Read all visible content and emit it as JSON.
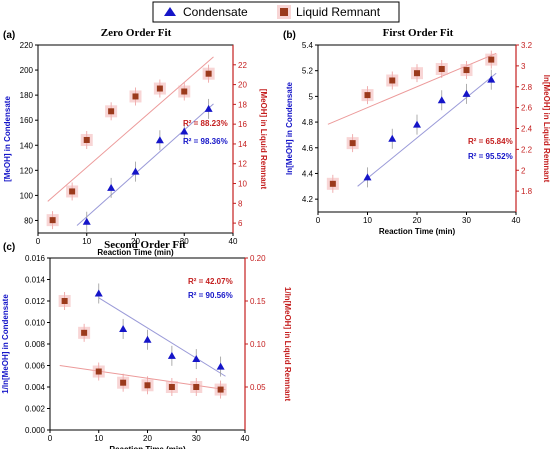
{
  "legend": {
    "items": [
      {
        "label": "Condensate",
        "marker": "triangle",
        "color": "#1515c8"
      },
      {
        "label": "Liquid Remnant",
        "marker": "square",
        "color": "#9b3a1c"
      }
    ]
  },
  "colors": {
    "condensate": "#1515c8",
    "remnant_marker": "#9b3a1c",
    "remnant_halo": "#f3b3b3",
    "remnant_axis": "#c41e1e",
    "fit_condensate": "#9a9ad8",
    "fit_remnant": "#ec9a9a"
  },
  "chart_data": [
    {
      "type": "scatter",
      "panel_label": "(a)",
      "title": "Zero Order Fit",
      "xlabel": "Reaction Time (min)",
      "ylabel_left": "[MeOH] in Condensate",
      "ylabel_right": "[MeOH] in Liquid Remnant",
      "xlim": [
        0,
        40
      ],
      "xticks": [
        0,
        10,
        20,
        30,
        40
      ],
      "ylim_left": [
        70,
        220
      ],
      "yticks_left": [
        80,
        100,
        120,
        140,
        160,
        180,
        200,
        220
      ],
      "ylim_right": [
        5,
        24
      ],
      "yticks_right": [
        6,
        8,
        10,
        12,
        14,
        16,
        18,
        20,
        22
      ],
      "series": [
        {
          "name": "Condensate",
          "axis": "left",
          "x": [
            10,
            15,
            20,
            25,
            30,
            35
          ],
          "y": [
            79,
            106,
            119,
            144,
            151,
            169
          ]
        },
        {
          "name": "Liquid Remnant",
          "axis": "right",
          "x": [
            3,
            7,
            10,
            15,
            20,
            25,
            30,
            35
          ],
          "y": [
            6.3,
            9.2,
            14.4,
            17.3,
            18.8,
            19.6,
            19.3,
            21.1
          ]
        }
      ],
      "fits": [
        {
          "axis": "left",
          "x": [
            8,
            36
          ],
          "y": [
            76,
            173
          ]
        },
        {
          "axis": "right",
          "x": [
            2,
            36
          ],
          "y": [
            8.2,
            22.8
          ]
        }
      ],
      "r2": [
        {
          "text": "R² = 88.23%",
          "series": "Liquid Remnant"
        },
        {
          "text": "R² = 98.36%",
          "series": "Condensate"
        }
      ]
    },
    {
      "type": "scatter",
      "panel_label": "(b)",
      "title": "First Order Fit",
      "xlabel": "Reaction Time (min)",
      "ylabel_left": "ln[MeOH] in Condensate",
      "ylabel_right": "ln[MeOH] in Liquid Remnant",
      "xlim": [
        0,
        40
      ],
      "xticks": [
        0,
        10,
        20,
        30,
        40
      ],
      "ylim_left": [
        4.1,
        5.4
      ],
      "yticks_left": [
        4.2,
        4.4,
        4.6,
        4.8,
        5.0,
        5.2,
        5.4
      ],
      "ylim_right": [
        1.6,
        3.2
      ],
      "yticks_right": [
        1.8,
        2.0,
        2.2,
        2.4,
        2.6,
        2.8,
        3.0,
        3.2
      ],
      "series": [
        {
          "name": "Condensate",
          "axis": "left",
          "x": [
            10,
            15,
            20,
            25,
            30,
            35
          ],
          "y": [
            4.37,
            4.67,
            4.78,
            4.97,
            5.02,
            5.13
          ]
        },
        {
          "name": "Liquid Remnant",
          "axis": "right",
          "x": [
            3,
            7,
            10,
            15,
            20,
            25,
            30,
            35
          ],
          "y": [
            1.87,
            2.26,
            2.72,
            2.86,
            2.93,
            2.97,
            2.96,
            3.06
          ]
        }
      ],
      "fits": [
        {
          "axis": "left",
          "x": [
            8,
            36
          ],
          "y": [
            4.3,
            5.18
          ]
        },
        {
          "axis": "right",
          "x": [
            2,
            36
          ],
          "y": [
            2.44,
            3.12
          ]
        }
      ],
      "r2": [
        {
          "text": "R² = 65.84%",
          "series": "Liquid Remnant"
        },
        {
          "text": "R² = 95.52%",
          "series": "Condensate"
        }
      ]
    },
    {
      "type": "scatter",
      "panel_label": "(c)",
      "title": "Second Order Fit",
      "xlabel": "Reaction Time (min)",
      "ylabel_left": "1/ln[MeOH] in Condensate",
      "ylabel_right": "1/ln[MeOH] in Liquid Remnant",
      "xlim": [
        0,
        40
      ],
      "xticks": [
        0,
        10,
        20,
        30,
        40
      ],
      "ylim_left": [
        0,
        0.016
      ],
      "yticks_left": [
        0.0,
        0.002,
        0.004,
        0.006,
        0.008,
        0.01,
        0.012,
        0.014,
        0.016
      ],
      "ytick_labels_left": [
        "0.000",
        "0.002",
        "0.004",
        "0.006",
        "0.008",
        "0.010",
        "0.012",
        "0.014",
        "0.016"
      ],
      "ylim_right": [
        0,
        0.2
      ],
      "yticks_right": [
        0.05,
        0.1,
        0.15,
        0.2
      ],
      "ytick_labels_right": [
        "0.05",
        "0.10",
        "0.15",
        "0.20"
      ],
      "series": [
        {
          "name": "Condensate",
          "axis": "left",
          "x": [
            10,
            15,
            20,
            25,
            30,
            35
          ],
          "y": [
            0.0127,
            0.0094,
            0.0084,
            0.0069,
            0.0066,
            0.0059
          ]
        },
        {
          "name": "Liquid Remnant",
          "axis": "right",
          "x": [
            3,
            7,
            10,
            15,
            20,
            25,
            30,
            35
          ],
          "y": [
            0.15,
            0.113,
            0.068,
            0.055,
            0.052,
            0.05,
            0.05,
            0.047
          ]
        }
      ],
      "fits": [
        {
          "axis": "left",
          "x": [
            10,
            36
          ],
          "y": [
            0.0123,
            0.005
          ]
        },
        {
          "axis": "right",
          "x": [
            2,
            36
          ],
          "y": [
            0.075,
            0.047
          ]
        }
      ],
      "r2": [
        {
          "text": "R² = 42.07%",
          "series": "Liquid Remnant"
        },
        {
          "text": "R² = 90.56%",
          "series": "Condensate"
        }
      ]
    }
  ]
}
